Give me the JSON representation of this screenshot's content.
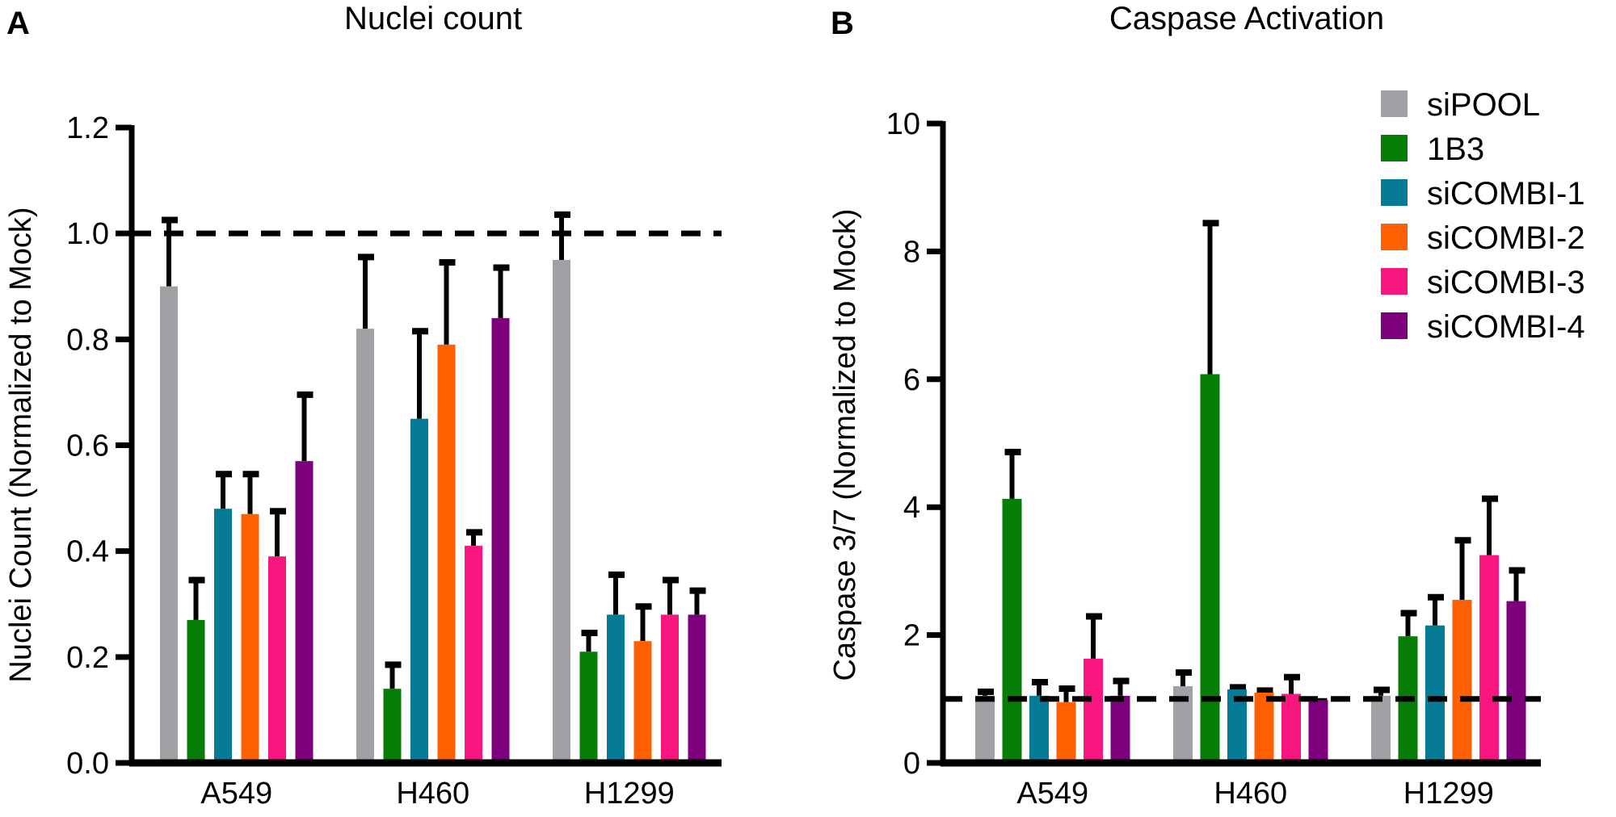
{
  "colors": {
    "siPOOL": "#a0a0a4",
    "1B3": "#067d06",
    "siCOMBI-1": "#067b96",
    "siCOMBI-2": "#ff6000",
    "siCOMBI-3": "#f7177f",
    "siCOMBI-4": "#7d007d"
  },
  "legend": [
    "siPOOL",
    "1B3",
    "siCOMBI-1",
    "siCOMBI-2",
    "siCOMBI-3",
    "siCOMBI-4"
  ],
  "chart_data": [
    {
      "panel": "A",
      "type": "bar",
      "title": "Nuclei count",
      "xlabel": "",
      "ylabel": "Nuclei Count (Normalized to Mock)",
      "ylim": [
        0,
        1.2
      ],
      "yticks": [
        "0.0",
        "0.2",
        "0.4",
        "0.6",
        "0.8",
        "1.0",
        "1.2"
      ],
      "reference_line": 1.0,
      "categories": [
        "A549",
        "H460",
        "H1299"
      ],
      "series": [
        {
          "name": "siPOOL",
          "values": [
            0.9,
            0.82,
            0.95
          ],
          "error_upper": [
            1.03,
            0.96,
            1.04
          ]
        },
        {
          "name": "1B3",
          "values": [
            0.27,
            0.14,
            0.21
          ],
          "error_upper": [
            0.35,
            0.19,
            0.25
          ]
        },
        {
          "name": "siCOMBI-1",
          "values": [
            0.48,
            0.65,
            0.28
          ],
          "error_upper": [
            0.55,
            0.82,
            0.36
          ]
        },
        {
          "name": "siCOMBI-2",
          "values": [
            0.47,
            0.79,
            0.23
          ],
          "error_upper": [
            0.55,
            0.95,
            0.3
          ]
        },
        {
          "name": "siCOMBI-3",
          "values": [
            0.39,
            0.41,
            0.28
          ],
          "error_upper": [
            0.48,
            0.44,
            0.35
          ]
        },
        {
          "name": "siCOMBI-4",
          "values": [
            0.57,
            0.84,
            0.28
          ],
          "error_upper": [
            0.7,
            0.94,
            0.33
          ]
        }
      ]
    },
    {
      "panel": "B",
      "type": "bar",
      "title": "Caspase Activation",
      "xlabel": "",
      "ylabel": "Caspase 3/7 (Normalized to Mock)",
      "ylim": [
        0,
        10
      ],
      "yticks": [
        "0",
        "2",
        "4",
        "6",
        "8",
        "10"
      ],
      "reference_line": 1.0,
      "legend_position": "top-right",
      "categories": [
        "A549",
        "H460",
        "H1299"
      ],
      "series": [
        {
          "name": "siPOOL",
          "values": [
            1.05,
            1.2,
            1.05
          ],
          "error_upper": [
            1.15,
            1.45,
            1.18
          ]
        },
        {
          "name": "1B3",
          "values": [
            4.13,
            6.08,
            1.98
          ],
          "error_upper": [
            4.9,
            8.48,
            2.38
          ]
        },
        {
          "name": "siCOMBI-1",
          "values": [
            1.05,
            1.15,
            2.15
          ],
          "error_upper": [
            1.3,
            1.22,
            2.63
          ]
        },
        {
          "name": "siCOMBI-2",
          "values": [
            0.95,
            1.1,
            2.55
          ],
          "error_upper": [
            1.2,
            1.17,
            3.52
          ]
        },
        {
          "name": "siCOMBI-3",
          "values": [
            1.63,
            1.08,
            3.25
          ],
          "error_upper": [
            2.33,
            1.38,
            4.17
          ]
        },
        {
          "name": "siCOMBI-4",
          "values": [
            1.05,
            0.98,
            2.53
          ],
          "error_upper": [
            1.32,
            1.0,
            3.05
          ]
        }
      ]
    }
  ]
}
